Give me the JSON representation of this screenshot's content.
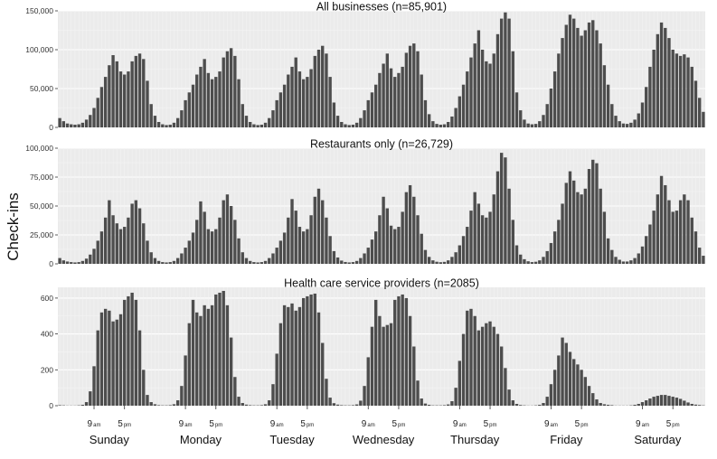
{
  "chart_data": {
    "type": "bar",
    "ylabel": "Check-ins",
    "days": [
      "Sunday",
      "Monday",
      "Tuesday",
      "Wednesday",
      "Thursday",
      "Friday",
      "Saturday"
    ],
    "hour_ticks": [
      {
        "hour": 9,
        "num": "9",
        "suffix": "am"
      },
      {
        "hour": 17,
        "num": "5",
        "suffix": "pm"
      }
    ],
    "panels": [
      {
        "title": "All businesses (n=85,901)",
        "ylim": [
          0,
          150000
        ],
        "yticks": [
          0,
          50000,
          100000,
          150000
        ],
        "ytick_labels": [
          "0",
          "50,000",
          "100,000",
          "150,000"
        ],
        "series": [
          {
            "day": "Sunday",
            "values": [
              12000,
              8000,
              5000,
              4000,
              3500,
              4000,
              6000,
              10000,
              16000,
              25000,
              38000,
              52000,
              65000,
              80000,
              93000,
              85000,
              72000,
              68000,
              72000,
              85000,
              92000,
              95000,
              88000,
              60000
            ]
          },
          {
            "day": "Monday",
            "values": [
              30000,
              15000,
              7000,
              4000,
              3000,
              3500,
              6000,
              12000,
              22000,
              35000,
              45000,
              55000,
              68000,
              78000,
              88000,
              70000,
              62000,
              65000,
              72000,
              90000,
              98000,
              102000,
              92000,
              62000
            ]
          },
          {
            "day": "Tuesday",
            "values": [
              30000,
              15000,
              7000,
              4000,
              3000,
              3500,
              6000,
              12000,
              22000,
              35000,
              45000,
              55000,
              68000,
              78000,
              90000,
              72000,
              62000,
              65000,
              75000,
              92000,
              100000,
              105000,
              95000,
              65000
            ]
          },
          {
            "day": "Wednesday",
            "values": [
              32000,
              15000,
              7000,
              4000,
              3000,
              3500,
              6000,
              12000,
              22000,
              35000,
              45000,
              55000,
              70000,
              82000,
              95000,
              76000,
              65000,
              70000,
              78000,
              96000,
              105000,
              108000,
              98000,
              68000
            ]
          },
          {
            "day": "Thursday",
            "values": [
              35000,
              17000,
              8000,
              4500,
              3500,
              4000,
              7000,
              14000,
              25000,
              40000,
              55000,
              72000,
              90000,
              108000,
              125000,
              100000,
              85000,
              82000,
              95000,
              120000,
              140000,
              148000,
              140000,
              98000
            ]
          },
          {
            "day": "Friday",
            "values": [
              45000,
              22000,
              10000,
              5000,
              4000,
              4500,
              8000,
              16000,
              30000,
              50000,
              72000,
              95000,
              115000,
              132000,
              145000,
              140000,
              128000,
              118000,
              125000,
              135000,
              138000,
              125000,
              108000,
              80000
            ]
          },
          {
            "day": "Saturday",
            "values": [
              55000,
              30000,
              15000,
              8000,
              5000,
              4500,
              6000,
              10000,
              18000,
              32000,
              52000,
              78000,
              100000,
              120000,
              135000,
              128000,
              115000,
              100000,
              95000,
              92000,
              94000,
              90000,
              78000,
              60000
            ]
          }
        ],
        "tail": [
          38000,
          20000
        ]
      },
      {
        "title": "Restaurants only (n=26,729)",
        "ylim": [
          0,
          100000
        ],
        "yticks": [
          0,
          25000,
          50000,
          75000,
          100000
        ],
        "ytick_labels": [
          "0",
          "25,000",
          "50,000",
          "75,000",
          "100,000"
        ],
        "series": [
          {
            "day": "Sunday",
            "values": [
              5000,
              3000,
              2000,
              1500,
              1200,
              1500,
              2500,
              4500,
              8000,
              13000,
              20000,
              28000,
              40000,
              55000,
              42000,
              35000,
              30000,
              32000,
              40000,
              52000,
              55000,
              48000,
              35000,
              20000
            ]
          },
          {
            "day": "Monday",
            "values": [
              10000,
              5000,
              2500,
              1500,
              1200,
              1500,
              2500,
              5000,
              9000,
              14000,
              20000,
              27000,
              38000,
              54000,
              45000,
              30000,
              28000,
              30000,
              40000,
              55000,
              60000,
              50000,
              38000,
              22000
            ]
          },
          {
            "day": "Tuesday",
            "values": [
              10000,
              5000,
              2500,
              1500,
              1200,
              1500,
              2500,
              5000,
              9000,
              14000,
              20000,
              27000,
              40000,
              56000,
              46000,
              32000,
              28000,
              30000,
              42000,
              58000,
              65000,
              55000,
              40000,
              24000
            ]
          },
          {
            "day": "Wednesday",
            "values": [
              11000,
              5500,
              2800,
              1600,
              1200,
              1500,
              2500,
              5000,
              9000,
              14000,
              21000,
              28000,
              42000,
              58000,
              48000,
              33000,
              30000,
              32000,
              45000,
              62000,
              68000,
              58000,
              42000,
              26000
            ]
          },
          {
            "day": "Thursday",
            "values": [
              12000,
              6000,
              3000,
              1800,
              1400,
              1700,
              3000,
              6000,
              10000,
              16000,
              24000,
              32000,
              46000,
              62000,
              52000,
              42000,
              40000,
              45000,
              60000,
              80000,
              96000,
              92000,
              65000,
              38000
            ]
          },
          {
            "day": "Friday",
            "values": [
              16000,
              8000,
              4000,
              2200,
              1500,
              1800,
              3000,
              6000,
              11000,
              18000,
              28000,
              38000,
              52000,
              70000,
              80000,
              72000,
              62000,
              60000,
              65000,
              82000,
              90000,
              87000,
              65000,
              45000
            ]
          },
          {
            "day": "Saturday",
            "values": [
              22000,
              12000,
              6000,
              3500,
              2000,
              2000,
              3000,
              5000,
              9000,
              15000,
              24000,
              34000,
              46000,
              60000,
              76000,
              68000,
              55000,
              45000,
              46000,
              55000,
              60000,
              55000,
              40000,
              28000
            ]
          }
        ],
        "tail": [
          14000,
          7000
        ]
      },
      {
        "title": "Health care service providers (n=2085)",
        "ylim": [
          0,
          660
        ],
        "yticks": [
          0,
          200,
          400,
          600
        ],
        "ytick_labels": [
          "0",
          "200",
          "400",
          "600"
        ],
        "series": [
          {
            "day": "Sunday",
            "values": [
              3,
              2,
              1,
              1,
              1,
              2,
              5,
              20,
              80,
              220,
              420,
              520,
              540,
              530,
              470,
              480,
              510,
              590,
              610,
              630,
              590,
              420,
              200,
              60
            ]
          },
          {
            "day": "Monday",
            "values": [
              20,
              8,
              3,
              2,
              2,
              3,
              8,
              30,
              110,
              280,
              460,
              590,
              520,
              500,
              560,
              540,
              560,
              620,
              630,
              640,
              560,
              380,
              160,
              50
            ]
          },
          {
            "day": "Tuesday",
            "values": [
              15,
              6,
              3,
              2,
              2,
              3,
              8,
              30,
              120,
              290,
              460,
              560,
              550,
              570,
              530,
              550,
              600,
              610,
              620,
              625,
              520,
              350,
              150,
              45
            ]
          },
          {
            "day": "Wednesday",
            "values": [
              14,
              6,
              3,
              2,
              2,
              3,
              7,
              28,
              110,
              270,
              440,
              590,
              500,
              440,
              450,
              460,
              590,
              610,
              620,
              600,
              500,
              330,
              140,
              40
            ]
          },
          {
            "day": "Thursday",
            "values": [
              12,
              5,
              2,
              2,
              2,
              3,
              7,
              25,
              100,
              250,
              400,
              530,
              540,
              500,
              420,
              440,
              460,
              470,
              440,
              400,
              330,
              210,
              90,
              30
            ]
          },
          {
            "day": "Friday",
            "values": [
              10,
              4,
              2,
              1,
              1,
              2,
              5,
              15,
              50,
              120,
              200,
              280,
              380,
              350,
              300,
              260,
              230,
              200,
              160,
              110,
              70,
              35,
              15,
              8
            ]
          },
          {
            "day": "Saturday",
            "values": [
              5,
              3,
              1,
              1,
              1,
              1,
              2,
              5,
              10,
              20,
              30,
              40,
              50,
              55,
              60,
              60,
              55,
              50,
              45,
              38,
              28,
              18,
              10,
              6
            ]
          }
        ],
        "tail": [
          4,
          2
        ]
      }
    ]
  }
}
